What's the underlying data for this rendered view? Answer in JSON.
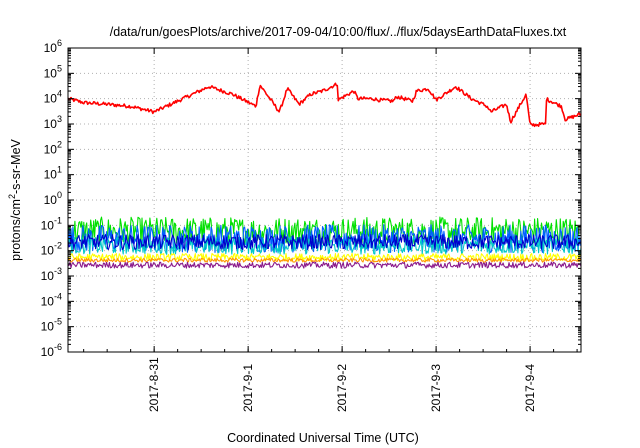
{
  "chart_data": {
    "type": "line",
    "title": "/data/run/goesPlots/archive/2017-09-04/10:00/flux/../flux/5daysEarthDataFluxes.txt",
    "xlabel": "Coordinated Universal Time (UTC)",
    "ylabel": {
      "base": "protons/cm",
      "exp": "2",
      "rest": "-s-sr-MeV"
    },
    "yscale": "log",
    "ylim": [
      1e-06,
      1000000.0
    ],
    "xlim": [
      "2017-08-30 02:00",
      "2017-09-04 13:00"
    ],
    "y_ticks": [
      {
        "value": 1e-06,
        "base": "10",
        "exp": "-6"
      },
      {
        "value": 1e-05,
        "base": "10",
        "exp": "-5"
      },
      {
        "value": 0.0001,
        "base": "10",
        "exp": "-4"
      },
      {
        "value": 0.001,
        "base": "10",
        "exp": "-3"
      },
      {
        "value": 0.01,
        "base": "10",
        "exp": "-2"
      },
      {
        "value": 0.1,
        "base": "10",
        "exp": "-1"
      },
      {
        "value": 1,
        "base": "10",
        "exp": "0"
      },
      {
        "value": 10,
        "base": "10",
        "exp": "1"
      },
      {
        "value": 100,
        "base": "10",
        "exp": "2"
      },
      {
        "value": 1000,
        "base": "10",
        "exp": "3"
      },
      {
        "value": 10000,
        "base": "10",
        "exp": "4"
      },
      {
        "value": 100000,
        "base": "10",
        "exp": "5"
      },
      {
        "value": 1000000,
        "base": "10",
        "exp": "6"
      }
    ],
    "x_ticks": [
      {
        "date": "2017-08-31 00:00",
        "label": "2017-8-31"
      },
      {
        "date": "2017-09-01 00:00",
        "label": "2017-9-1"
      },
      {
        "date": "2017-09-02 00:00",
        "label": "2017-9-2"
      },
      {
        "date": "2017-09-03 00:00",
        "label": "2017-9-3"
      },
      {
        "date": "2017-09-04 00:00",
        "label": "2017-9-4"
      }
    ],
    "grid": true,
    "series": [
      {
        "color": "#ff0000",
        "noise": 0.12,
        "points": [
          [
            "2017-08-30 02:00",
            10000
          ],
          [
            "2017-08-30 06:00",
            7000
          ],
          [
            "2017-08-30 12:00",
            6000
          ],
          [
            "2017-08-30 18:00",
            5000
          ],
          [
            "2017-08-31 00:00",
            3000
          ],
          [
            "2017-08-31 06:00",
            8000
          ],
          [
            "2017-08-31 14:00",
            30000
          ],
          [
            "2017-08-31 20:00",
            15000
          ],
          [
            "2017-09-01 02:00",
            5000
          ],
          [
            "2017-09-01 08:00",
            3000
          ],
          [
            "2017-09-01 13:00",
            6000
          ],
          [
            "2017-09-01 19:00",
            20000
          ],
          [
            "2017-09-01 23:00",
            40000
          ],
          [
            "2017-09-01 03:00",
            35000
          ],
          [
            "2017-09-01 10:00",
            25000
          ],
          [
            "2017-09-01 16:00",
            15000
          ],
          [
            "2017-09-01 23:00",
            9000
          ],
          [
            "2017-09-02 04:00",
            10000
          ],
          [
            "2017-09-02 09:00",
            9000
          ],
          [
            "2017-09-02 14:00",
            12000
          ],
          [
            "2017-09-02 19:00",
            20000
          ],
          [
            "2017-09-02 22:00",
            25000
          ],
          [
            "2017-09-02 03:00",
            20000
          ],
          [
            "2017-09-02 08:00",
            10000
          ],
          [
            "2017-09-02 13:00",
            8000
          ],
          [
            "2017-09-02 18:00",
            8000
          ],
          [
            "2017-09-03 00:00",
            9000
          ],
          [
            "2017-09-03 05:00",
            30000
          ],
          [
            "2017-09-03 09:00",
            10000
          ],
          [
            "2017-09-03 14:00",
            3000
          ],
          [
            "2017-09-03 19:00",
            1200
          ],
          [
            "2017-09-04 00:00",
            900
          ],
          [
            "2017-09-04 04:00",
            1000
          ],
          [
            "2017-09-04 09:00",
            1500
          ],
          [
            "2017-09-03 13:00",
            5000
          ],
          [
            "2017-09-03 18:00",
            6000
          ],
          [
            "2017-09-03 23:00",
            15000
          ],
          [
            "2017-09-04 04:00",
            10000
          ],
          [
            "2017-09-04 08:00",
            5000
          ],
          [
            "2017-09-04 13:00",
            2500
          ]
        ]
      },
      {
        "color": "#00e000",
        "noise": 0.55,
        "points": [
          [
            "2017-08-30 02:00",
            0.06
          ],
          [
            "2017-09-04 13:00",
            0.06
          ]
        ]
      },
      {
        "color": "#0060ff",
        "noise": 0.55,
        "points": [
          [
            "2017-08-30 02:00",
            0.03
          ],
          [
            "2017-09-04 13:00",
            0.03
          ]
        ]
      },
      {
        "color": "#00c8c8",
        "noise": 0.35,
        "points": [
          [
            "2017-08-30 02:00",
            0.016
          ],
          [
            "2017-09-04 13:00",
            0.016
          ]
        ]
      },
      {
        "color": "#0000cc",
        "noise": 0.3,
        "points": [
          [
            "2017-08-30 02:00",
            0.022
          ],
          [
            "2017-09-04 13:00",
            0.022
          ]
        ]
      },
      {
        "color": "#ffff00",
        "noise": 0.15,
        "points": [
          [
            "2017-08-30 02:00",
            0.0055
          ],
          [
            "2017-09-04 13:00",
            0.0055
          ]
        ]
      },
      {
        "color": "#ff9900",
        "noise": 0.08,
        "points": [
          [
            "2017-08-30 02:00",
            0.0042
          ],
          [
            "2017-09-04 13:00",
            0.0042
          ]
        ]
      },
      {
        "color": "#8b1a8b",
        "noise": 0.12,
        "points": [
          [
            "2017-08-30 02:00",
            0.0027
          ],
          [
            "2017-09-04 13:00",
            0.0027
          ]
        ]
      }
    ]
  }
}
